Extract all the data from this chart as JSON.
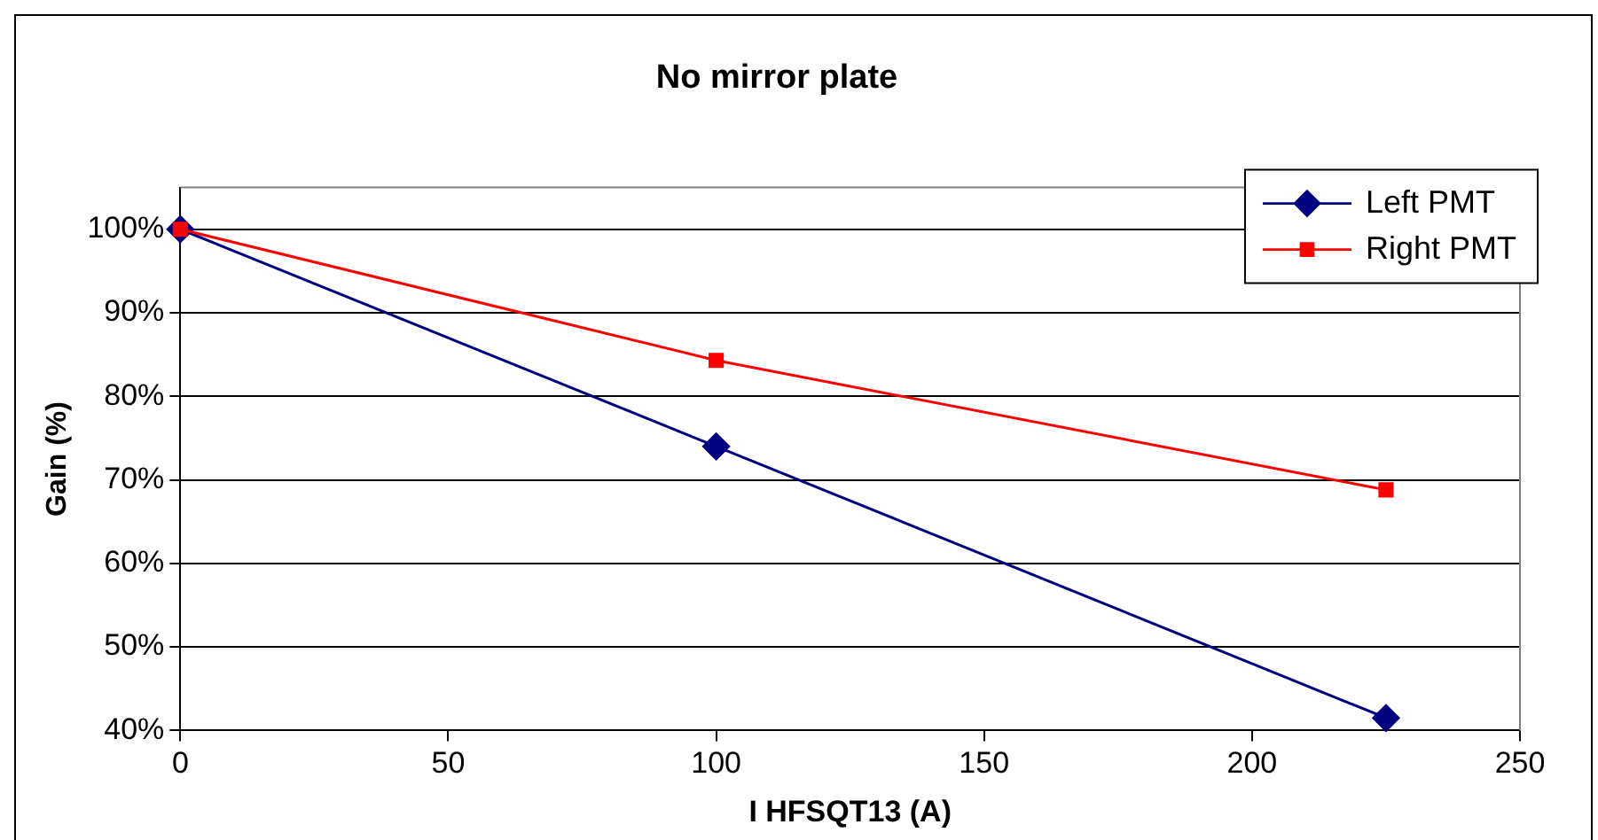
{
  "chart_data": {
    "type": "line",
    "title": "No mirror plate",
    "xlabel": "I HFSQT13 (A)",
    "ylabel": "Gain (%)",
    "x": [
      0,
      100,
      225
    ],
    "series": [
      {
        "name": "Left PMT",
        "color": "#000080",
        "marker": "diamond",
        "values": [
          100,
          74,
          41.5
        ]
      },
      {
        "name": "Right PMT",
        "color": "#ff0000",
        "marker": "square",
        "values": [
          100,
          84.3,
          68.8
        ]
      }
    ],
    "xlim": [
      0,
      250
    ],
    "xticks": [
      0,
      50,
      100,
      150,
      200,
      250
    ],
    "ylim": [
      40,
      105
    ],
    "yticks": [
      {
        "value": 40,
        "label": "40%"
      },
      {
        "value": 50,
        "label": "50%"
      },
      {
        "value": 60,
        "label": "60%"
      },
      {
        "value": 70,
        "label": "70%"
      },
      {
        "value": 80,
        "label": "80%"
      },
      {
        "value": 90,
        "label": "90%"
      },
      {
        "value": 100,
        "label": "100%"
      }
    ],
    "grid": "y",
    "legend": "top right",
    "line_style": "solid"
  }
}
